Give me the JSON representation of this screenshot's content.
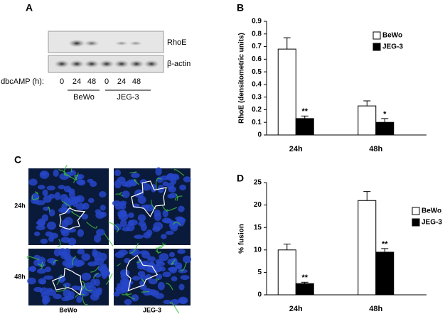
{
  "panel_labels": [
    "A",
    "B",
    "C",
    "D"
  ],
  "blot": {
    "bands": [
      "RhoE",
      "β-actin"
    ],
    "treatment_label": "dbcAMP (h):",
    "doses": [
      "0",
      "24",
      "48",
      "0",
      "24",
      "48"
    ],
    "groups": [
      "BeWo",
      "JEG-3"
    ]
  },
  "micrographs": {
    "rows": [
      "24h",
      "48h"
    ],
    "cols": [
      "BeWo",
      "JEG-3"
    ]
  },
  "chart_data": [
    {
      "type": "bar",
      "y_label": "RhoE (densitometric units)",
      "categories": [
        "24h",
        "48h"
      ],
      "series": [
        {
          "name": "BeWo",
          "color": "#ffffff",
          "values": [
            0.68,
            0.23
          ],
          "errors": [
            0.09,
            0.04
          ]
        },
        {
          "name": "JEG-3",
          "color": "#000000",
          "values": [
            0.13,
            0.1
          ],
          "errors": [
            0.02,
            0.03
          ],
          "significance": [
            "**",
            "*"
          ]
        }
      ],
      "ylim": [
        0,
        0.9
      ],
      "yticks": [
        0,
        0.1,
        0.2,
        0.3,
        0.4,
        0.5,
        0.6,
        0.7,
        0.8,
        0.9
      ],
      "legend": "upper right"
    },
    {
      "type": "bar",
      "y_label": "% fusion",
      "categories": [
        "24h",
        "48h"
      ],
      "series": [
        {
          "name": "BeWo",
          "color": "#ffffff",
          "values": [
            10,
            21
          ],
          "errors": [
            1.3,
            2
          ]
        },
        {
          "name": "JEG-3",
          "color": "#000000",
          "values": [
            2.5,
            9.5
          ],
          "errors": [
            0.3,
            0.8
          ],
          "significance": [
            "**",
            "**"
          ]
        }
      ],
      "ylim": [
        0,
        25
      ],
      "yticks": [
        0,
        5,
        10,
        15,
        20,
        25
      ],
      "legend": "right"
    }
  ]
}
